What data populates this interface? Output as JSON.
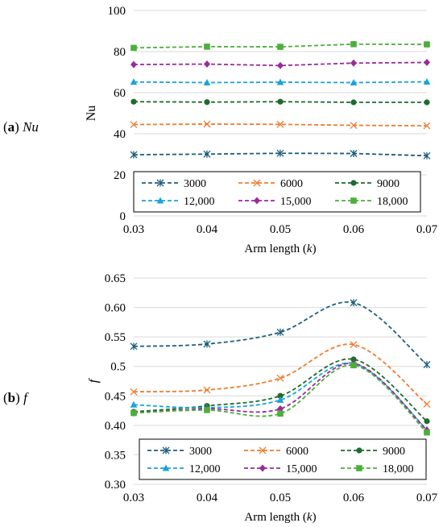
{
  "panels": [
    {
      "letter": "a",
      "name": "Nu"
    },
    {
      "letter": "b",
      "name": "f"
    }
  ],
  "chart_data": [
    {
      "type": "line",
      "x": [
        0.03,
        0.04,
        0.05,
        0.06,
        0.07
      ],
      "xlabel": "Arm length",
      "xlabel_var": "k",
      "ylabel": "Nu",
      "ylabel_italic": false,
      "xlim": [
        0.03,
        0.07
      ],
      "ylim": [
        0,
        100
      ],
      "yticks": [
        0,
        20,
        40,
        60,
        80,
        100
      ],
      "xtick_labels": [
        "0.03",
        "0.04",
        "0.05",
        "0.06",
        "0.07"
      ],
      "ytick_labels": [
        "0",
        "20",
        "40",
        "60",
        "80",
        "100"
      ],
      "grid": "horizontal",
      "legend": "bottom",
      "smooth": false,
      "series": [
        {
          "name": "3000",
          "color": "#1f5f7f",
          "marker": "asterisk",
          "values": [
            29.8,
            30.1,
            30.5,
            30.4,
            29.3
          ]
        },
        {
          "name": "6000",
          "color": "#ed7d31",
          "marker": "x",
          "values": [
            44.5,
            44.7,
            44.6,
            44.1,
            43.9
          ]
        },
        {
          "name": "9000",
          "color": "#1e6b2e",
          "marker": "circle",
          "values": [
            55.6,
            55.4,
            55.6,
            55.3,
            55.3
          ]
        },
        {
          "name": "12,000",
          "color": "#1aa3d9",
          "marker": "triangle",
          "values": [
            65.2,
            64.9,
            65.1,
            64.9,
            65.3
          ]
        },
        {
          "name": "15,000",
          "color": "#9b2a9b",
          "marker": "diamond",
          "values": [
            73.7,
            73.9,
            73.2,
            74.4,
            74.7
          ]
        },
        {
          "name": "18,000",
          "color": "#4caf3c",
          "marker": "square",
          "values": [
            81.8,
            82.4,
            82.3,
            83.6,
            83.5
          ]
        }
      ]
    },
    {
      "type": "line",
      "x": [
        0.03,
        0.04,
        0.05,
        0.06,
        0.07
      ],
      "xlabel": "Arm length",
      "xlabel_var": "k",
      "ylabel": "f",
      "ylabel_italic": true,
      "xlim": [
        0.03,
        0.07
      ],
      "ylim": [
        0.3,
        0.65
      ],
      "yticks": [
        0.3,
        0.35,
        0.4,
        0.45,
        0.5,
        0.55,
        0.6,
        0.65
      ],
      "xtick_labels": [
        "0.03",
        "0.04",
        "0.05",
        "0.06",
        "0.07"
      ],
      "ytick_labels": [
        "0.30",
        "0.35",
        "0.40",
        "0.45",
        "0.5",
        "0.55",
        "0.60",
        "0.65"
      ],
      "grid": "horizontal",
      "legend": "bottom",
      "smooth": true,
      "series": [
        {
          "name": "3000",
          "color": "#1f5f7f",
          "marker": "asterisk",
          "values": [
            0.534,
            0.538,
            0.558,
            0.608,
            0.503
          ]
        },
        {
          "name": "6000",
          "color": "#ed7d31",
          "marker": "x",
          "values": [
            0.457,
            0.46,
            0.48,
            0.537,
            0.436
          ]
        },
        {
          "name": "9000",
          "color": "#1e6b2e",
          "marker": "circle",
          "values": [
            0.423,
            0.433,
            0.45,
            0.512,
            0.407
          ]
        },
        {
          "name": "12,000",
          "color": "#1aa3d9",
          "marker": "triangle",
          "values": [
            0.435,
            0.43,
            0.443,
            0.505,
            0.393
          ]
        },
        {
          "name": "15,000",
          "color": "#9b2a9b",
          "marker": "diamond",
          "values": [
            0.421,
            0.428,
            0.428,
            0.505,
            0.392
          ]
        },
        {
          "name": "18,000",
          "color": "#4caf3c",
          "marker": "square",
          "values": [
            0.421,
            0.426,
            0.42,
            0.502,
            0.388
          ]
        }
      ]
    }
  ]
}
